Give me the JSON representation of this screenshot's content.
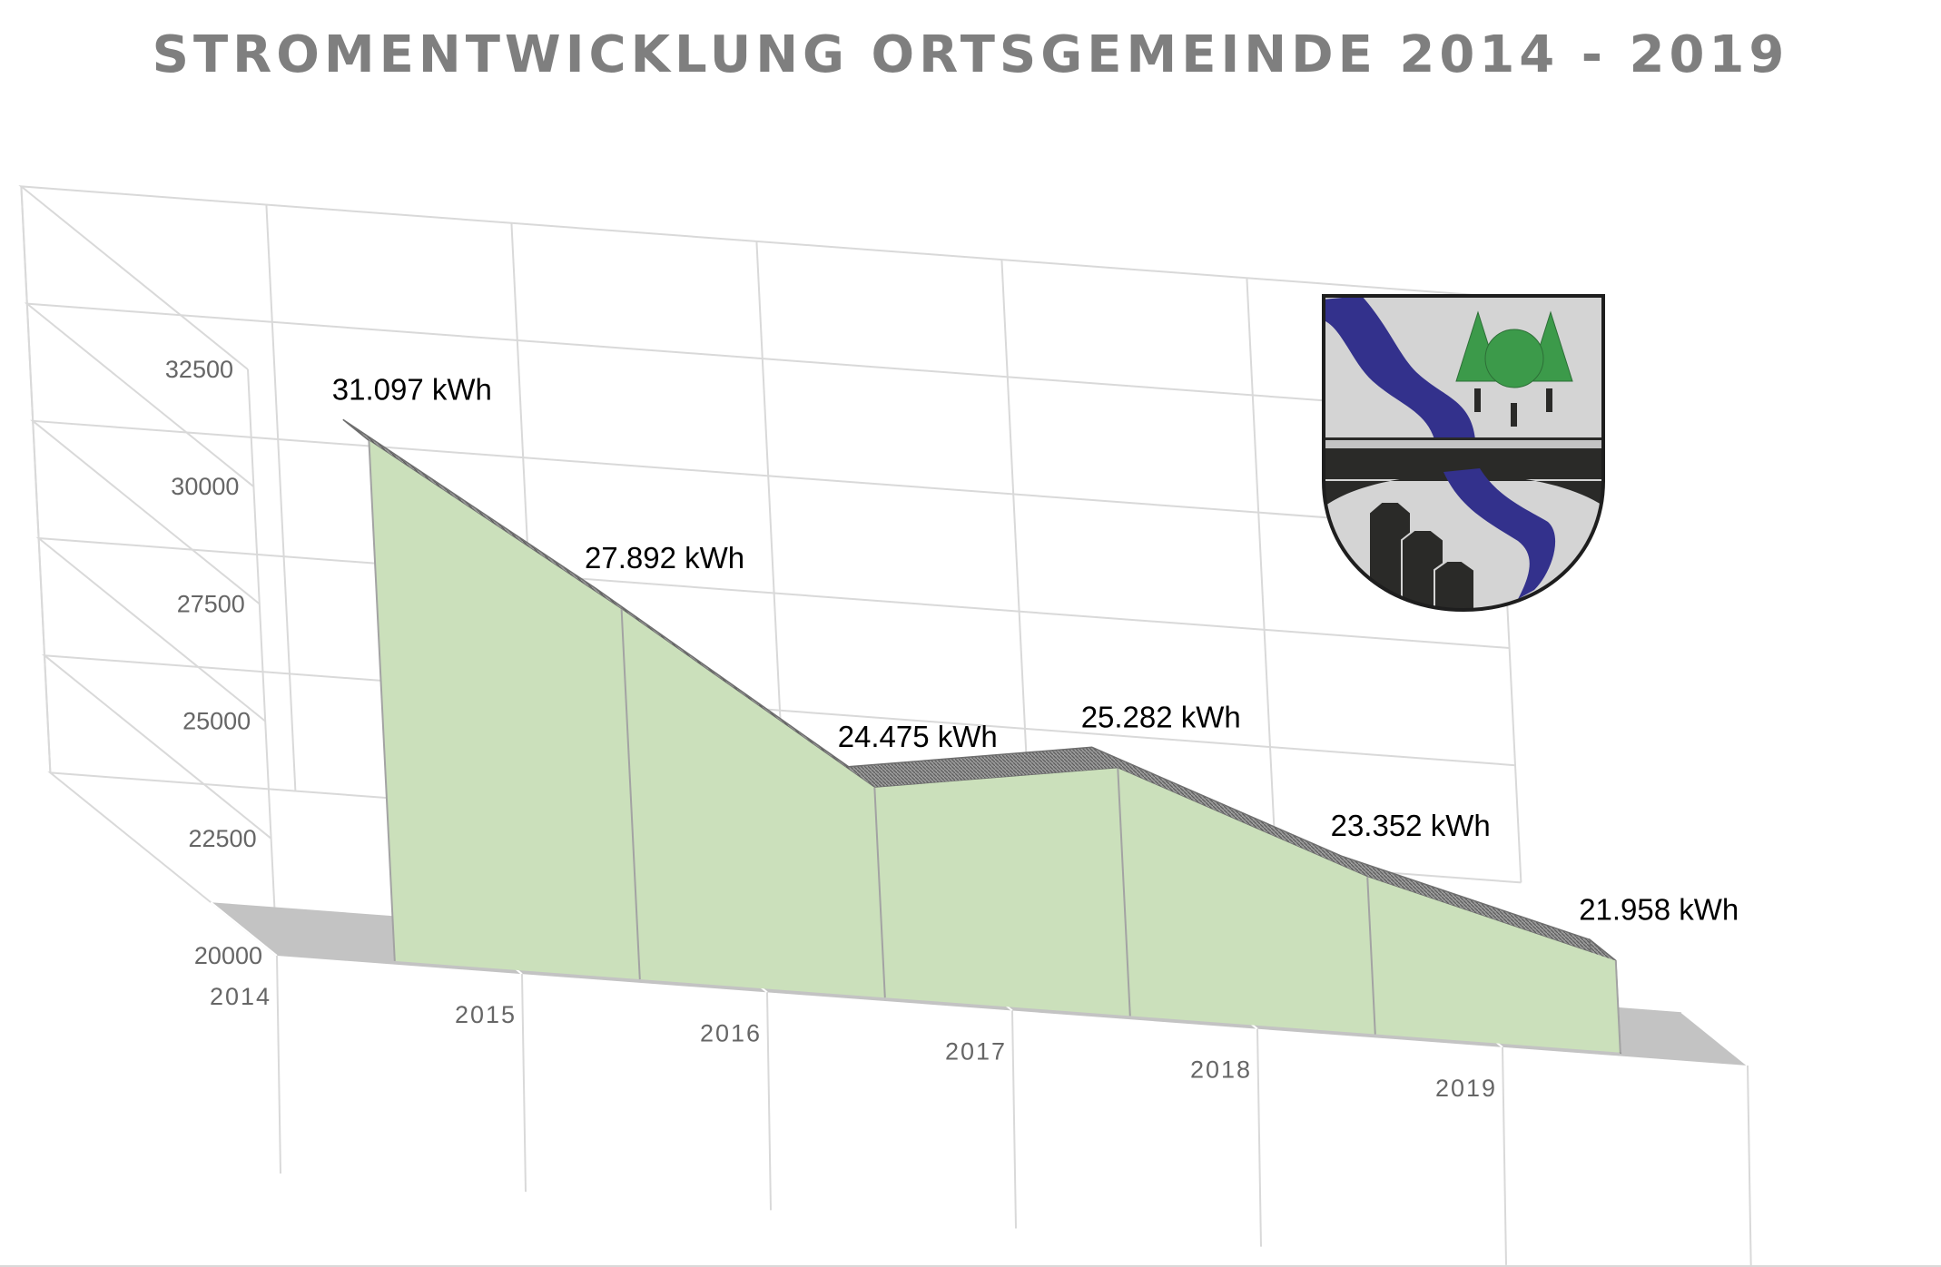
{
  "title": "STROMENTWICKLUNG ORTSGEMEINDE 2014 - 2019",
  "chart_data": {
    "type": "area",
    "view": "3d",
    "title": "STROMENTWICKLUNG ORTSGEMEINDE 2014 - 2019",
    "categories": [
      "2014",
      "2015",
      "2016",
      "2017",
      "2018",
      "2019"
    ],
    "series": [
      {
        "values": [
          31097,
          27892,
          24475,
          25282,
          23352,
          21958
        ],
        "labels": [
          "31.097 kWh",
          "27.892 kWh",
          "24.475 kWh",
          "25.282 kWh",
          "23.352 kWh",
          "21.958 kWh"
        ],
        "color": "#cbe0bb"
      }
    ],
    "y_ticks": [
      "20000",
      "22500",
      "25000",
      "27500",
      "30000",
      "32500"
    ],
    "ylim": [
      20000,
      32500
    ],
    "grid": true,
    "legend": "none",
    "colors": {
      "area": "#cbe0bb",
      "ribbon": "#8c8c8c",
      "floor": "#c3c3c3",
      "gridline": "#d9d9d9",
      "tick_text": "#666666",
      "title_text": "#7f7f7f"
    }
  },
  "emblem": {
    "name": "coat-of-arms",
    "colors": {
      "river": "#33318c",
      "trees": "#3c9a4a",
      "field": "#d4d4d4",
      "band": "#2a2a28",
      "outline": "#1e1e1e"
    }
  }
}
